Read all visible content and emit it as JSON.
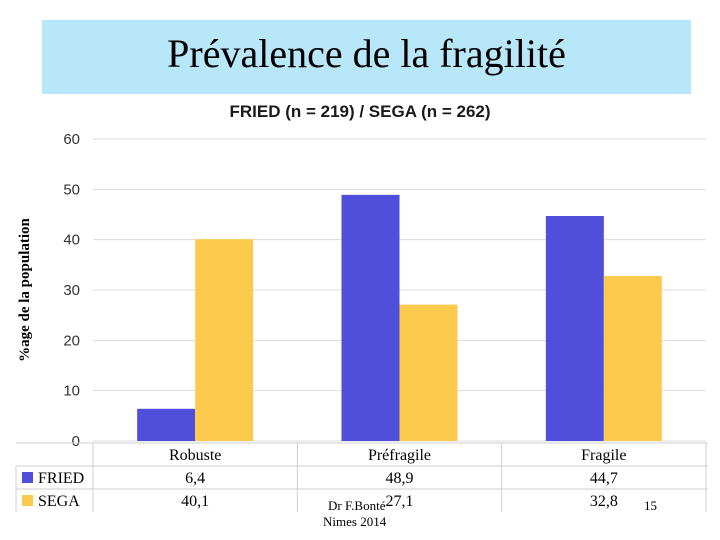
{
  "slide": {
    "title": "Prévalence de la fragilité",
    "author": "Dr F.Bonté",
    "place": "Nimes 2014",
    "page": "15"
  },
  "colors": {
    "fried": "#4f4fdb",
    "sega": "#fccb4e",
    "band": "#b7e7f8"
  },
  "chart_data": {
    "type": "bar",
    "title": "FRIED (n = 219) / SEGA (n = 262)",
    "ylabel": "%age de la population",
    "xlabel": "",
    "ylim": [
      0,
      60
    ],
    "yticks": [
      0,
      10,
      20,
      30,
      40,
      50,
      60
    ],
    "categories": [
      "Robuste",
      "Préfragile",
      "Fragile"
    ],
    "series": [
      {
        "name": "FRIED",
        "values": [
          6.4,
          48.9,
          44.7
        ],
        "labels": [
          "6,4",
          "48,9",
          "44,7"
        ]
      },
      {
        "name": "SEGA",
        "values": [
          40.1,
          27.1,
          32.8
        ],
        "labels": [
          "40,1",
          "27,1",
          "32,8"
        ]
      }
    ],
    "grid": true,
    "legend": "table-below"
  }
}
